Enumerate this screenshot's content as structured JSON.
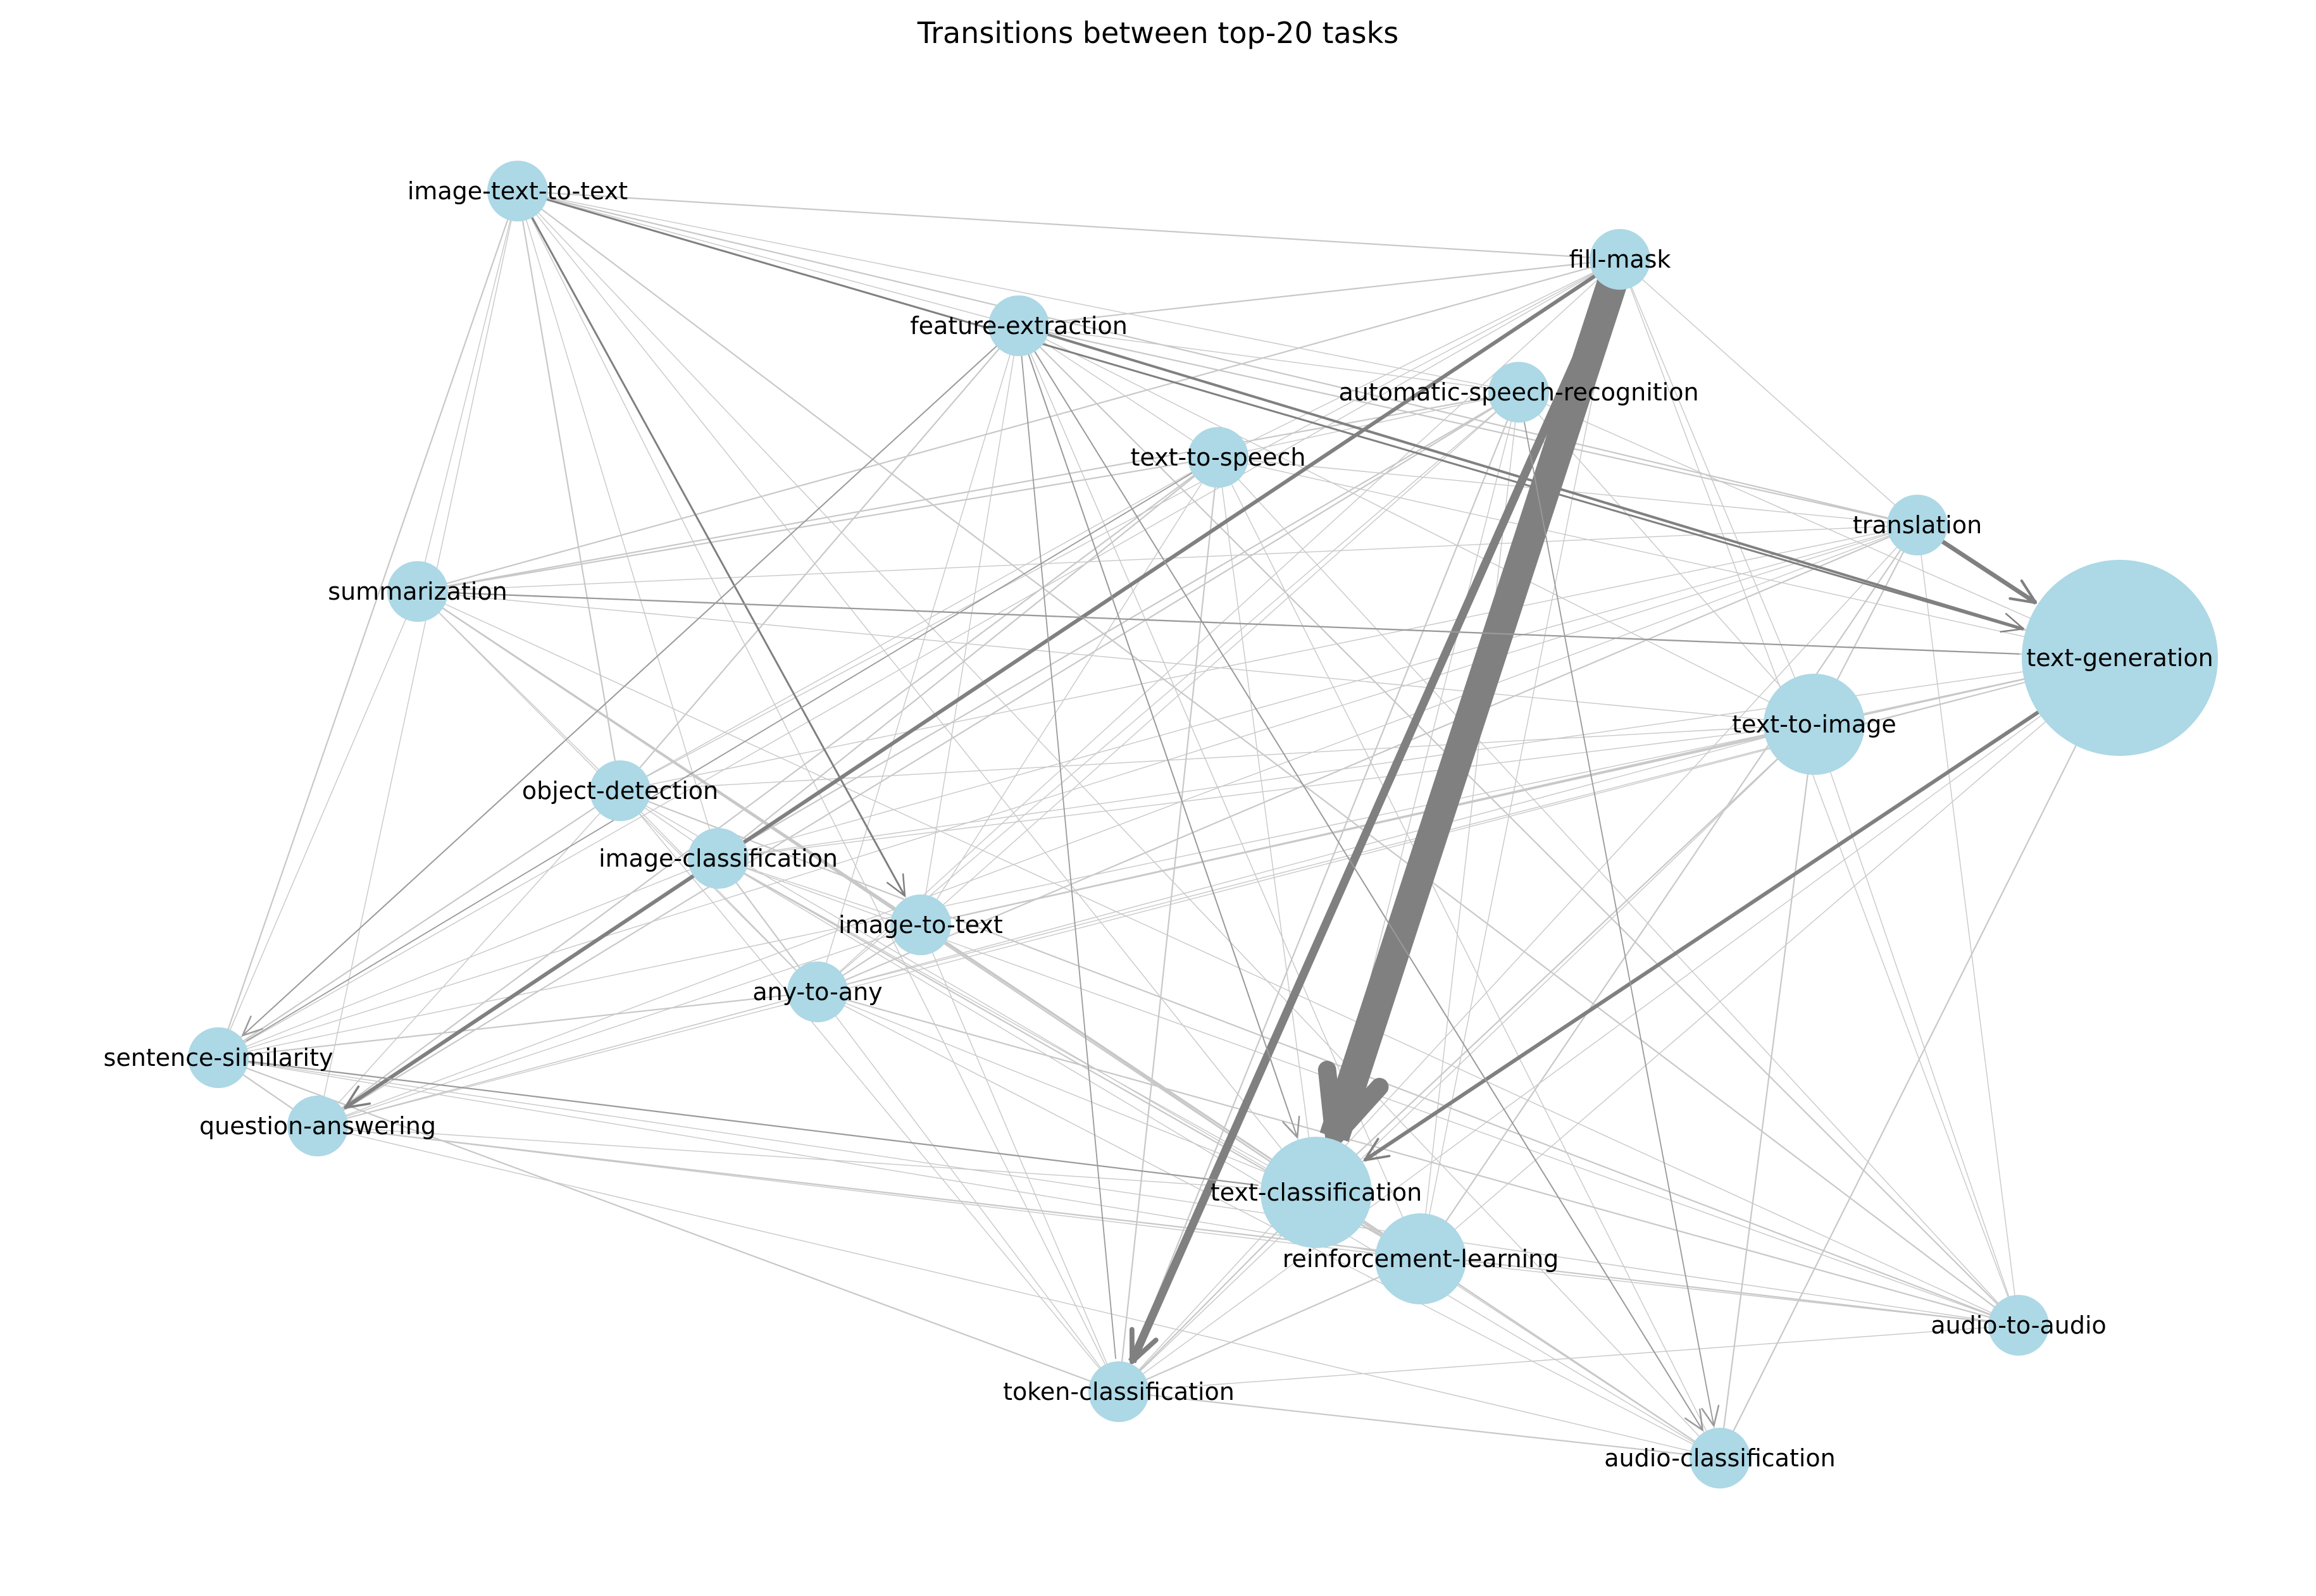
{
  "title": "Transitions between top-20 tasks",
  "colors": {
    "node": "#add8e6",
    "edge": "#808080",
    "edge_light": "#c8c8c8",
    "background": "#ffffff"
  },
  "nodes": [
    {
      "id": "image-text-to-text",
      "label": "image-text-to-text"
    },
    {
      "id": "fill-mask",
      "label": "fill-mask"
    },
    {
      "id": "feature-extraction",
      "label": "feature-extraction"
    },
    {
      "id": "automatic-speech-recognition",
      "label": "automatic-speech-recognition"
    },
    {
      "id": "text-to-speech",
      "label": "text-to-speech"
    },
    {
      "id": "translation",
      "label": "translation"
    },
    {
      "id": "summarization",
      "label": "summarization"
    },
    {
      "id": "text-generation",
      "label": "text-generation"
    },
    {
      "id": "text-to-image",
      "label": "text-to-image"
    },
    {
      "id": "object-detection",
      "label": "object-detection"
    },
    {
      "id": "image-classification",
      "label": "image-classification"
    },
    {
      "id": "image-to-text",
      "label": "image-to-text"
    },
    {
      "id": "any-to-any",
      "label": "any-to-any"
    },
    {
      "id": "sentence-similarity",
      "label": "sentence-similarity"
    },
    {
      "id": "question-answering",
      "label": "question-answering"
    },
    {
      "id": "text-classification",
      "label": "text-classification"
    },
    {
      "id": "reinforcement-learning",
      "label": "reinforcement-learning"
    },
    {
      "id": "audio-to-audio",
      "label": "audio-to-audio"
    },
    {
      "id": "token-classification",
      "label": "token-classification"
    },
    {
      "id": "audio-classification",
      "label": "audio-classification"
    }
  ]
}
